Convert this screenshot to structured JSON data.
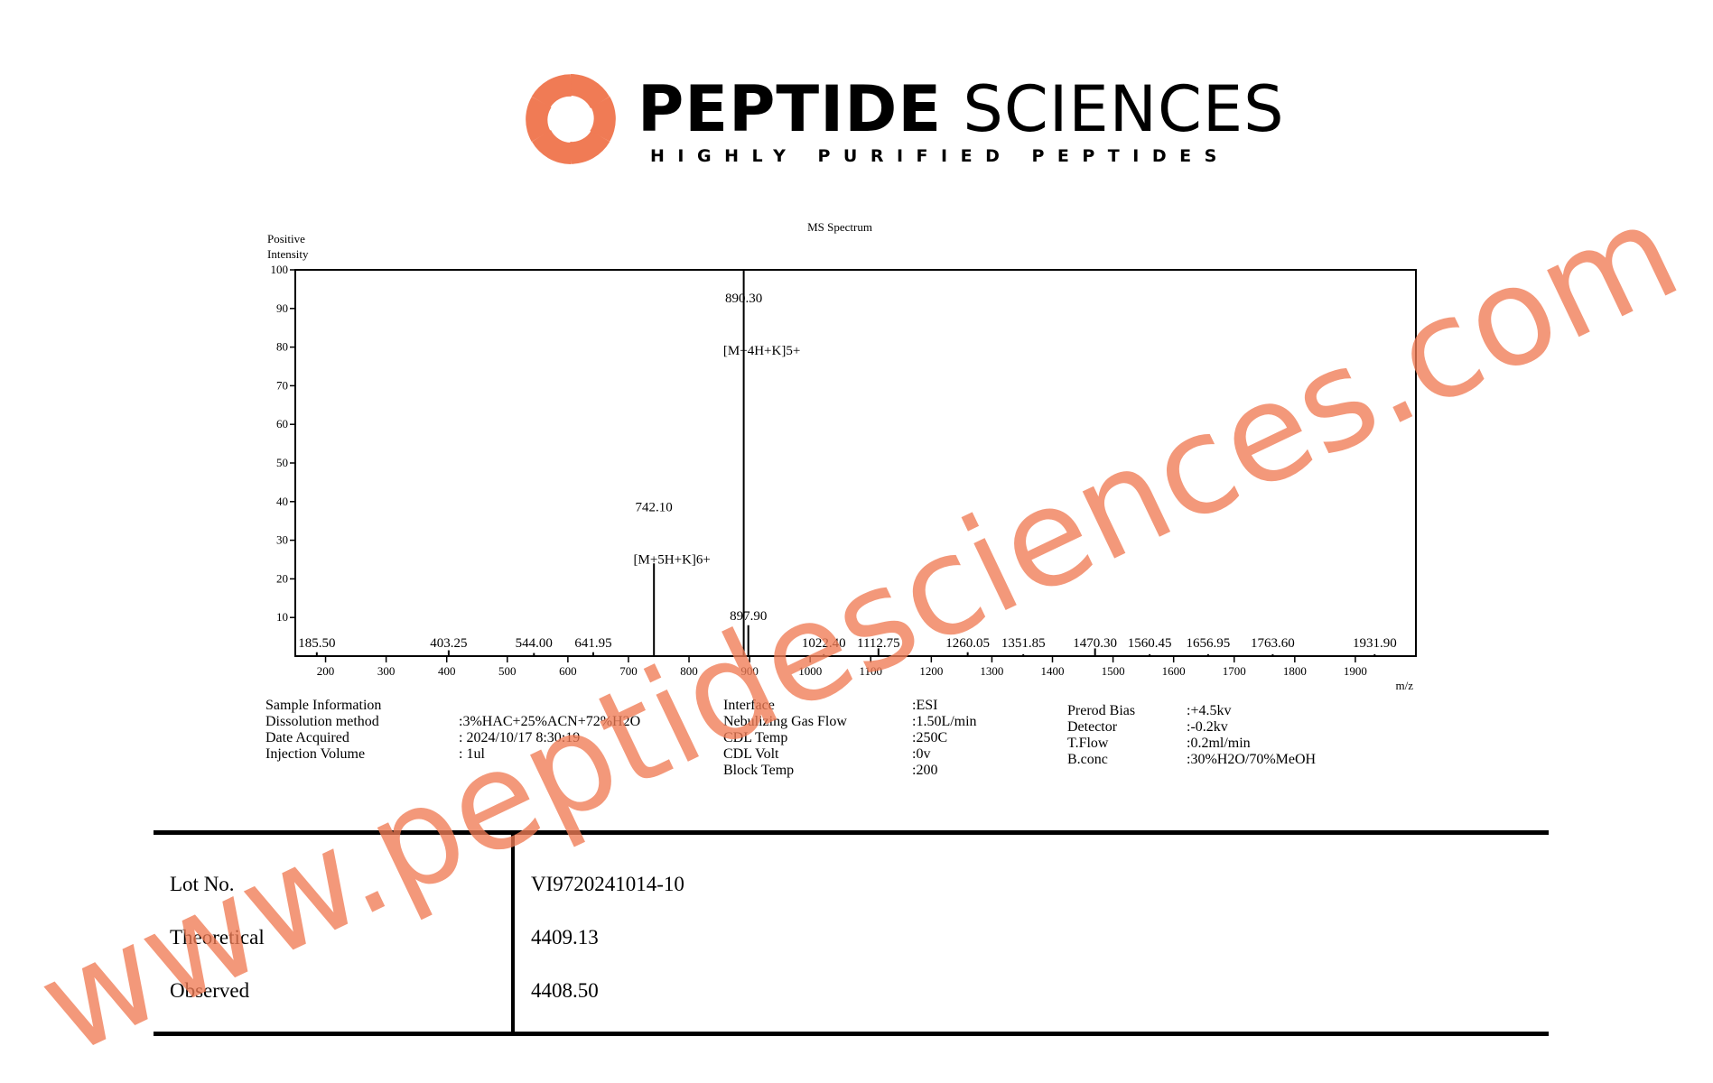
{
  "brand": {
    "name_bold": "PEPTIDE",
    "name_light": "SCIENCES",
    "tagline": "HIGHLY PURIFIED PEPTIDES",
    "logo_color": "#f07b55"
  },
  "chart_data": {
    "type": "bar",
    "title": "MS Spectrum",
    "ylabel_line1": "Positive",
    "ylabel_line2": "Intensity",
    "xlabel": "m/z",
    "xlim": [
      150,
      2000
    ],
    "ylim": [
      0,
      100
    ],
    "x_ticks": [
      200,
      300,
      400,
      500,
      600,
      700,
      800,
      900,
      1000,
      1100,
      1200,
      1300,
      1400,
      1500,
      1600,
      1700,
      1800,
      1900
    ],
    "y_ticks": [
      10,
      20,
      30,
      40,
      50,
      60,
      70,
      80,
      90,
      100
    ],
    "peaks": [
      {
        "mz": 185.5,
        "intensity": 1,
        "label": "185.50",
        "annotation": ""
      },
      {
        "mz": 403.25,
        "intensity": 1.5,
        "label": "403.25",
        "annotation": ""
      },
      {
        "mz": 544.0,
        "intensity": 0.8,
        "label": "544.00",
        "annotation": ""
      },
      {
        "mz": 641.95,
        "intensity": 1,
        "label": "641.95",
        "annotation": ""
      },
      {
        "mz": 742.1,
        "intensity": 24,
        "label": "742.10",
        "annotation": "[M+5H+K]6+"
      },
      {
        "mz": 897.9,
        "intensity": 8,
        "label": "897.90",
        "annotation": ""
      },
      {
        "mz": 890.3,
        "intensity": 100,
        "label": "890.30",
        "annotation": "[M+4H+K]5+"
      },
      {
        "mz": 1022.4,
        "intensity": 0.5,
        "label": "1022.40",
        "annotation": ""
      },
      {
        "mz": 1112.75,
        "intensity": 2,
        "label": "1112.75",
        "annotation": ""
      },
      {
        "mz": 1260.05,
        "intensity": 1,
        "label": "1260.05",
        "annotation": ""
      },
      {
        "mz": 1351.85,
        "intensity": 0.5,
        "label": "1351.85",
        "annotation": ""
      },
      {
        "mz": 1470.3,
        "intensity": 2,
        "label": "1470.30",
        "annotation": ""
      },
      {
        "mz": 1560.45,
        "intensity": 0.5,
        "label": "1560.45",
        "annotation": ""
      },
      {
        "mz": 1656.95,
        "intensity": 0.5,
        "label": "1656.95",
        "annotation": ""
      },
      {
        "mz": 1763.6,
        "intensity": 0.5,
        "label": "1763.60",
        "annotation": ""
      },
      {
        "mz": 1931.9,
        "intensity": 0.5,
        "label": "1931.90",
        "annotation": ""
      }
    ],
    "grid": false
  },
  "params": {
    "col1": {
      "labels": [
        "Sample Information",
        "Dissolution method",
        "Date Acquired",
        "Injection Volume"
      ],
      "values": [
        "",
        ":3%HAC+25%ACN+72%H2O",
        ": 2024/10/17 8:30:19",
        ": 1ul"
      ]
    },
    "col2": {
      "labels": [
        "Interface",
        "Nebulizing Gas Flow",
        "CDL Temp",
        "CDL Volt",
        "Block Temp"
      ],
      "values": [
        ":ESI",
        ":1.50L/min",
        ":250C",
        ":0v",
        ":200"
      ]
    },
    "col3": {
      "labels": [
        "Prerod Bias",
        "Detector",
        "T.Flow",
        "B.conc"
      ],
      "values": [
        ":+4.5kv",
        ":-0.2kv",
        ":0.2ml/min",
        ":30%H2O/70%MeOH"
      ]
    }
  },
  "results": [
    {
      "label": "Lot No.",
      "value": "VI9720241014-10"
    },
    {
      "label": "Theoretical",
      "value": "4409.13"
    },
    {
      "label": "Observed",
      "value": "4408.50"
    }
  ],
  "watermark": {
    "text": "www.peptidesciences.com",
    "color": "#f07b55"
  }
}
